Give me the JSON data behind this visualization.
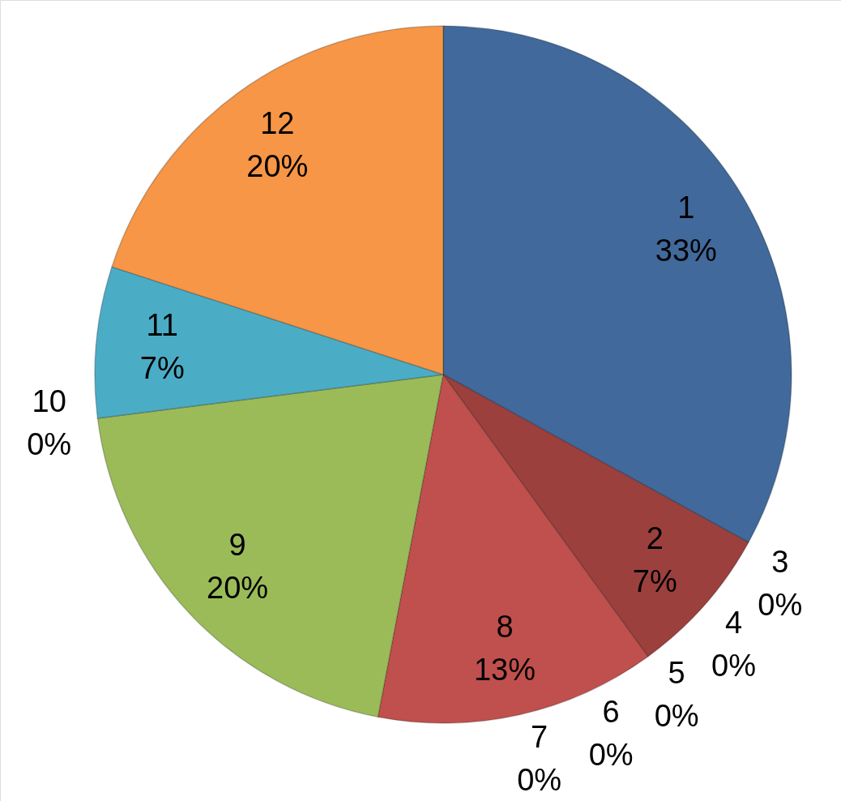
{
  "chart_data": {
    "type": "pie",
    "categories": [
      "1",
      "2",
      "3",
      "4",
      "5",
      "6",
      "7",
      "8",
      "9",
      "10",
      "11",
      "12"
    ],
    "values": [
      33,
      7,
      0,
      0,
      0,
      0,
      0,
      13,
      20,
      0,
      7,
      20
    ],
    "value_labels": [
      "33%",
      "7%",
      "0%",
      "0%",
      "0%",
      "0%",
      "0%",
      "13%",
      "20%",
      "0%",
      "7%",
      "20%"
    ],
    "colors": [
      "#41699b",
      "#9c403e",
      "#7e9a48",
      "#664f82",
      "#3b8ba0",
      "#c77a36",
      "#4f81bd",
      "#c0504d",
      "#9bbb59",
      "#8064a2",
      "#4bacc6",
      "#f79646"
    ]
  }
}
